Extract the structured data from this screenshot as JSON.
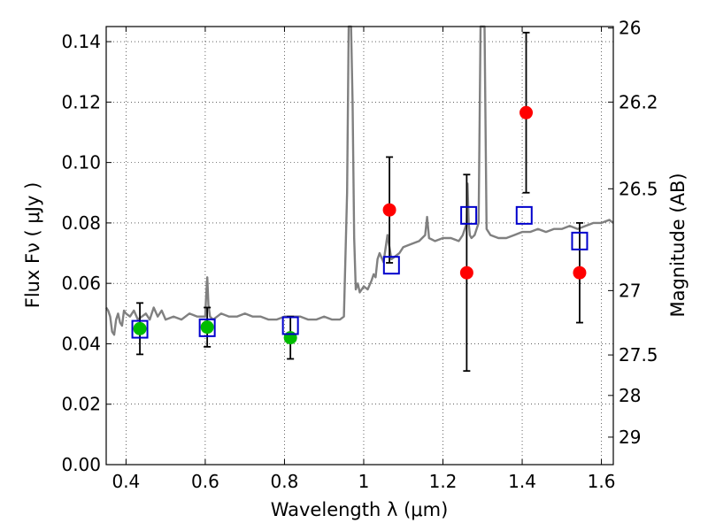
{
  "chart_data": {
    "type": "scatter",
    "xlabel": "Wavelength  λ (μm)",
    "ylabel": "Flux  Fν  ( μJy )",
    "ylabel_right": "Magnitude (AB)",
    "xlim": [
      0.35,
      1.63
    ],
    "ylim": [
      0.0,
      0.145
    ],
    "grid": true,
    "x_ticks": [
      0.4,
      0.6,
      0.8,
      1.0,
      1.2,
      1.4,
      1.6
    ],
    "x_tick_labels": [
      "0.4",
      "0.6",
      "0.8",
      "1",
      "1.2",
      "1.4",
      "1.6"
    ],
    "y_ticks": [
      0.0,
      0.02,
      0.04,
      0.06,
      0.08,
      0.1,
      0.12,
      0.14
    ],
    "y_tick_labels": [
      "0.00",
      "0.02",
      "0.04",
      "0.06",
      "0.08",
      "0.10",
      "0.12",
      "0.14"
    ],
    "right_ticks": [
      {
        "label": "26",
        "flux": 0.1445
      },
      {
        "label": "26.2",
        "flux": 0.12
      },
      {
        "label": "26.5",
        "flux": 0.0913
      },
      {
        "label": "27",
        "flux": 0.0576
      },
      {
        "label": "27.5",
        "flux": 0.0363
      },
      {
        "label": "28",
        "flux": 0.0229
      },
      {
        "label": "29",
        "flux": 0.0091
      }
    ],
    "colors": {
      "spectrum": "#808080",
      "green_points": "#00bb00",
      "red_points": "#ff0000",
      "model_squares": "#0000cc",
      "error_bars": "#000000"
    },
    "series": [
      {
        "name": "model spectrum",
        "kind": "line",
        "x": [
          0.35,
          0.355,
          0.36,
          0.365,
          0.37,
          0.375,
          0.38,
          0.385,
          0.39,
          0.395,
          0.4,
          0.41,
          0.42,
          0.43,
          0.44,
          0.45,
          0.46,
          0.47,
          0.48,
          0.49,
          0.5,
          0.52,
          0.54,
          0.56,
          0.58,
          0.6,
          0.602,
          0.605,
          0.608,
          0.612,
          0.62,
          0.64,
          0.66,
          0.68,
          0.7,
          0.72,
          0.74,
          0.76,
          0.78,
          0.8,
          0.82,
          0.84,
          0.86,
          0.88,
          0.9,
          0.92,
          0.94,
          0.95,
          0.958,
          0.962,
          0.965,
          0.968,
          0.972,
          0.976,
          0.98,
          0.985,
          0.99,
          1.0,
          1.01,
          1.02,
          1.025,
          1.03,
          1.035,
          1.04,
          1.05,
          1.06,
          1.07,
          1.08,
          1.09,
          1.1,
          1.12,
          1.14,
          1.155,
          1.16,
          1.165,
          1.18,
          1.2,
          1.22,
          1.24,
          1.25,
          1.26,
          1.262,
          1.265,
          1.268,
          1.272,
          1.28,
          1.29,
          1.295,
          1.298,
          1.302,
          1.305,
          1.31,
          1.32,
          1.34,
          1.36,
          1.38,
          1.4,
          1.42,
          1.44,
          1.46,
          1.48,
          1.5,
          1.52,
          1.54,
          1.56,
          1.58,
          1.6,
          1.62,
          1.63
        ],
        "y": [
          0.052,
          0.051,
          0.049,
          0.044,
          0.043,
          0.048,
          0.05,
          0.047,
          0.046,
          0.051,
          0.05,
          0.049,
          0.051,
          0.048,
          0.049,
          0.05,
          0.048,
          0.052,
          0.049,
          0.051,
          0.048,
          0.049,
          0.048,
          0.05,
          0.049,
          0.049,
          0.055,
          0.062,
          0.053,
          0.049,
          0.048,
          0.05,
          0.049,
          0.049,
          0.05,
          0.049,
          0.049,
          0.048,
          0.048,
          0.049,
          0.049,
          0.049,
          0.048,
          0.048,
          0.049,
          0.048,
          0.048,
          0.049,
          0.09,
          0.146,
          0.146,
          0.146,
          0.12,
          0.075,
          0.058,
          0.06,
          0.057,
          0.059,
          0.058,
          0.061,
          0.063,
          0.062,
          0.068,
          0.07,
          0.067,
          0.076,
          0.068,
          0.069,
          0.07,
          0.072,
          0.073,
          0.074,
          0.076,
          0.082,
          0.075,
          0.074,
          0.075,
          0.075,
          0.074,
          0.076,
          0.08,
          0.093,
          0.08,
          0.076,
          0.075,
          0.076,
          0.08,
          0.146,
          0.146,
          0.146,
          0.146,
          0.078,
          0.076,
          0.075,
          0.075,
          0.076,
          0.077,
          0.077,
          0.078,
          0.077,
          0.078,
          0.078,
          0.079,
          0.078,
          0.079,
          0.08,
          0.08,
          0.081,
          0.08
        ]
      },
      {
        "name": "green photometry",
        "kind": "points",
        "x": [
          0.435,
          0.605,
          0.815
        ],
        "y": [
          0.045,
          0.0455,
          0.042
        ],
        "err": [
          0.0085,
          0.0065,
          0.007
        ]
      },
      {
        "name": "red photometry",
        "kind": "points",
        "x": [
          1.065,
          1.26,
          1.41,
          1.545
        ],
        "y": [
          0.0843,
          0.0635,
          0.1165,
          0.0635
        ],
        "err": [
          0.0175,
          0.0325,
          0.0265,
          0.0165
        ]
      },
      {
        "name": "model photometry",
        "kind": "squares",
        "x": [
          0.435,
          0.605,
          0.815,
          1.07,
          1.265,
          1.405,
          1.545
        ],
        "y": [
          0.0448,
          0.0453,
          0.046,
          0.066,
          0.0825,
          0.0825,
          0.074
        ]
      }
    ]
  }
}
